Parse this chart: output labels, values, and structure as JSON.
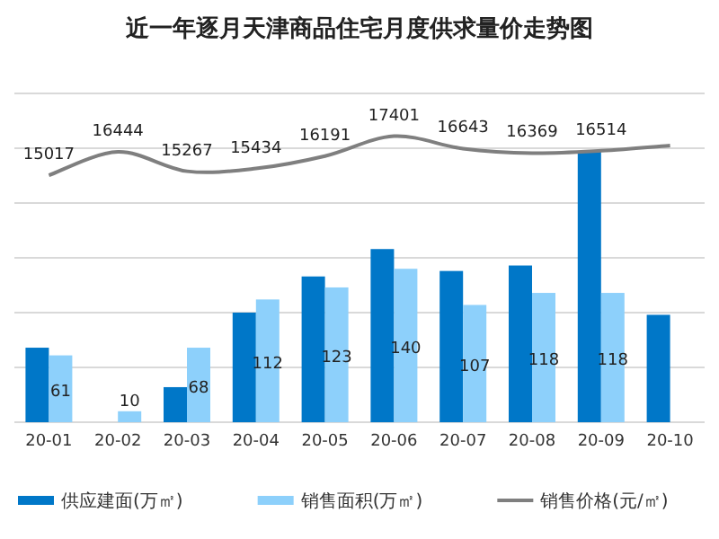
{
  "chart_data": {
    "type": "bar",
    "title": "近一年逐月天津商品住宅月度供求量价走势图",
    "categories": [
      "20-01",
      "20-02",
      "20-03",
      "20-04",
      "20-05",
      "20-06",
      "20-07",
      "20-08",
      "20-09",
      "20-10"
    ],
    "series": [
      {
        "name": "供应建面(万㎡)",
        "color": "#0077c8",
        "values": [
          68,
          0,
          32,
          100,
          133,
          158,
          138,
          143,
          247,
          98
        ]
      },
      {
        "name": "销售面积(万㎡)",
        "color": "#8dd0fb",
        "values": [
          61,
          10,
          68,
          112,
          123,
          140,
          107,
          118,
          118,
          null
        ],
        "value_labels": [
          "61",
          "10",
          "68",
          "112",
          "123",
          "140",
          "107",
          "118",
          "118",
          null
        ]
      },
      {
        "name": "销售价格(元/㎡)",
        "type": "line",
        "axis": "y2",
        "color": "#7f7f7f",
        "values": [
          15017,
          16444,
          15267,
          15434,
          16191,
          17401,
          16643,
          16369,
          16514,
          16830
        ],
        "value_labels": [
          "15017",
          "16444",
          "15267",
          "15434",
          "16191",
          "17401",
          "16643",
          "16369",
          "16514",
          null
        ]
      }
    ],
    "ylim": [
      0,
      300
    ],
    "yticks": [
      {
        "value": 0,
        "label": null
      },
      {
        "value": 50,
        "label": null
      },
      {
        "value": 100,
        "label": null
      },
      {
        "value": 150,
        "label": null
      },
      {
        "value": 200,
        "label": null
      },
      {
        "value": 250,
        "label": null
      },
      {
        "value": 300,
        "label": null
      }
    ],
    "y2lim": [
      0,
      20000
    ],
    "grid": "y",
    "legend": "bottom",
    "tick_labels": "x"
  }
}
